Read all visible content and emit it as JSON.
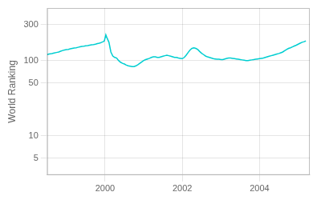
{
  "chart_data": {
    "type": "line",
    "ylabel": "World Ranking",
    "color": "#00CED1",
    "log": "y",
    "grid": true,
    "xlim": [
      1998.5,
      2005.3
    ],
    "xticks": [
      2000,
      2002,
      2004
    ],
    "ylim": [
      3,
      500
    ],
    "yticks": [
      5,
      10,
      50,
      100,
      300
    ],
    "x": [
      1998.5,
      1998.55,
      1998.62,
      1998.68,
      1998.74,
      1998.8,
      1998.85,
      1998.9,
      1998.95,
      1999.0,
      1999.05,
      1999.1,
      1999.15,
      1999.2,
      1999.25,
      1999.3,
      1999.35,
      1999.4,
      1999.45,
      1999.5,
      1999.55,
      1999.6,
      1999.65,
      1999.7,
      1999.75,
      1999.8,
      1999.85,
      1999.88,
      1999.91,
      1999.95,
      1999.98,
      2000.02,
      2000.05,
      2000.1,
      2000.15,
      2000.2,
      2000.25,
      2000.3,
      2000.35,
      2000.4,
      2000.45,
      2000.5,
      2000.55,
      2000.6,
      2000.65,
      2000.7,
      2000.75,
      2000.8,
      2000.85,
      2000.9,
      2000.95,
      2001.0,
      2001.05,
      2001.1,
      2001.15,
      2001.2,
      2001.25,
      2001.3,
      2001.35,
      2001.4,
      2001.45,
      2001.5,
      2001.55,
      2001.6,
      2001.65,
      2001.7,
      2001.75,
      2001.8,
      2001.85,
      2001.9,
      2001.95,
      2002.0,
      2002.05,
      2002.1,
      2002.15,
      2002.2,
      2002.25,
      2002.3,
      2002.35,
      2002.4,
      2002.45,
      2002.5,
      2002.55,
      2002.6,
      2002.65,
      2002.7,
      2002.75,
      2002.8,
      2002.85,
      2002.9,
      2002.95,
      2003.0,
      2003.05,
      2003.1,
      2003.15,
      2003.2,
      2003.25,
      2003.3,
      2003.35,
      2003.4,
      2003.45,
      2003.5,
      2003.55,
      2003.6,
      2003.65,
      2003.7,
      2003.75,
      2003.8,
      2003.85,
      2003.9,
      2003.95,
      2004.0,
      2004.05,
      2004.1,
      2004.15,
      2004.2,
      2004.25,
      2004.3,
      2004.35,
      2004.4,
      2004.45,
      2004.5,
      2004.55,
      2004.6,
      2004.65,
      2004.7,
      2004.75,
      2004.8,
      2004.85,
      2004.9,
      2004.95,
      2005.0,
      2005.05,
      2005.1,
      2005.15,
      2005.2
    ],
    "values": [
      120,
      122,
      124,
      126,
      128,
      130,
      133,
      136,
      138,
      140,
      141,
      143,
      145,
      147,
      148,
      150,
      152,
      154,
      155,
      157,
      158,
      160,
      162,
      163,
      165,
      168,
      170,
      172,
      175,
      178,
      182,
      220,
      200,
      175,
      130,
      115,
      110,
      108,
      100,
      95,
      92,
      90,
      87,
      85,
      84,
      83,
      83,
      85,
      88,
      92,
      96,
      100,
      103,
      105,
      107,
      110,
      112,
      112,
      110,
      110,
      112,
      114,
      116,
      118,
      116,
      114,
      112,
      110,
      110,
      108,
      107,
      106,
      110,
      118,
      128,
      138,
      145,
      148,
      145,
      140,
      132,
      125,
      120,
      115,
      112,
      110,
      108,
      106,
      105,
      104,
      104,
      103,
      103,
      105,
      107,
      108,
      108,
      107,
      106,
      105,
      104,
      103,
      102,
      101,
      100,
      100,
      101,
      102,
      103,
      104,
      105,
      106,
      107,
      108,
      110,
      112,
      114,
      116,
      118,
      120,
      122,
      124,
      127,
      130,
      135,
      140,
      145,
      148,
      152,
      156,
      160,
      165,
      170,
      175,
      178,
      182
    ]
  }
}
